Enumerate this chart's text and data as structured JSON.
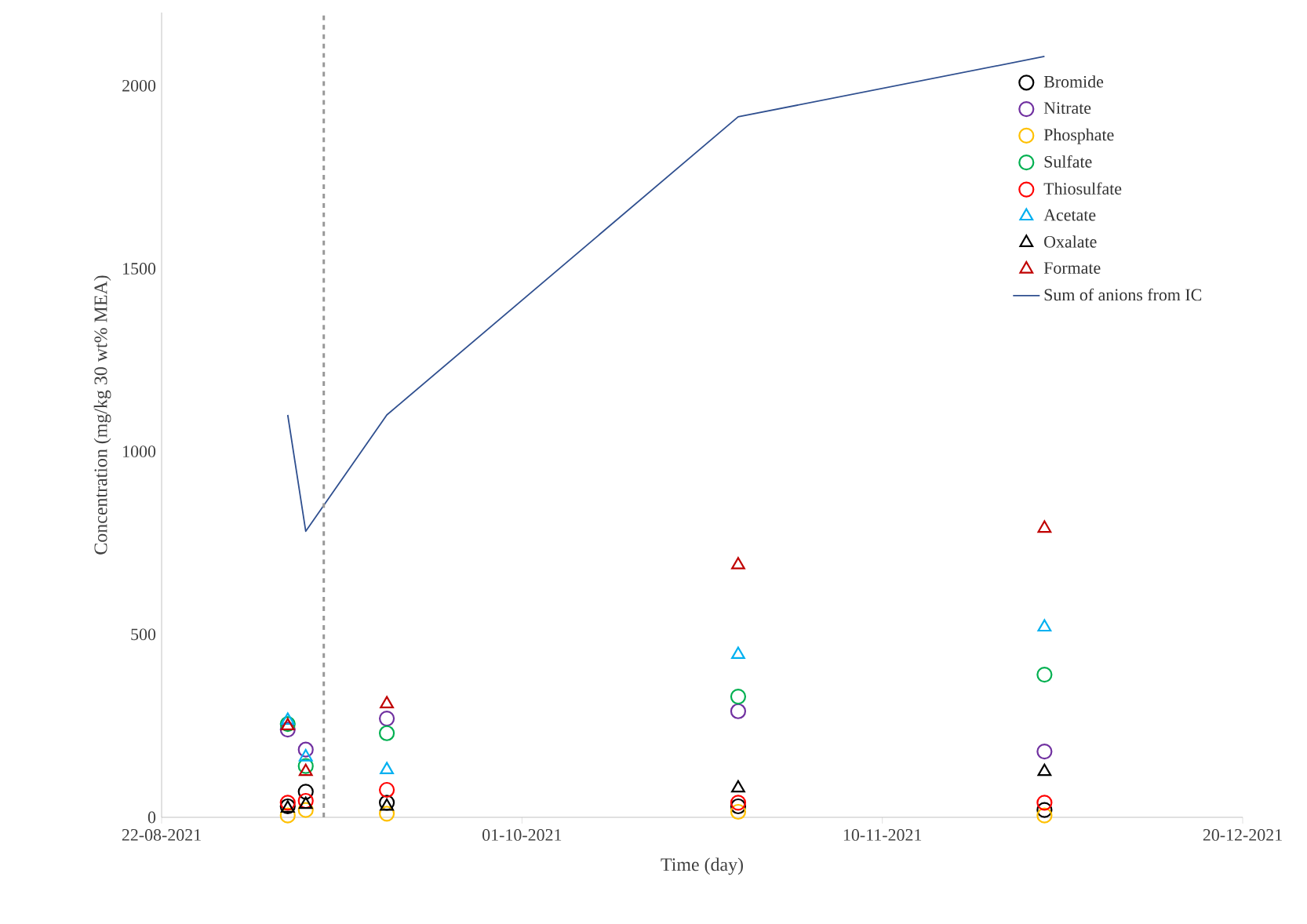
{
  "chart_data": {
    "type": "scatter",
    "xlabel": "Time (day)",
    "ylabel": "Concentration (mg/kg 30 wt% MEA)",
    "x": [
      "2021-09-05",
      "2021-09-07",
      "2021-09-16",
      "2021-10-25",
      "2021-11-28"
    ],
    "xlim": [
      "2021-08-22",
      "2021-12-20"
    ],
    "xticks": [
      {
        "value": "2021-08-22",
        "label": "22-08-2021"
      },
      {
        "value": "2021-10-01",
        "label": "01-10-2021"
      },
      {
        "value": "2021-11-10",
        "label": "10-11-2021"
      },
      {
        "value": "2021-12-20",
        "label": "20-12-2021"
      }
    ],
    "ylim": [
      0,
      2200
    ],
    "yticks": [
      0,
      500,
      1000,
      1500,
      2000
    ],
    "legend": "top right",
    "grid": false,
    "series": [
      {
        "name": "Bromide",
        "color": "#000000",
        "marker": "circle",
        "values": [
          30,
          70,
          40,
          30,
          20
        ]
      },
      {
        "name": "Nitrate",
        "color": "#7030a0",
        "marker": "circle",
        "values": [
          240,
          185,
          270,
          290,
          180
        ]
      },
      {
        "name": "Phosphate",
        "color": "#ffc000",
        "marker": "circle",
        "values": [
          5,
          20,
          10,
          15,
          5
        ]
      },
      {
        "name": "Sulfate",
        "color": "#00b050",
        "marker": "circle",
        "values": [
          255,
          140,
          230,
          330,
          390
        ]
      },
      {
        "name": "Thiosulfate",
        "color": "#ff0000",
        "marker": "circle",
        "values": [
          40,
          45,
          75,
          40,
          40
        ]
      },
      {
        "name": "Acetate",
        "color": "#00b0f0",
        "marker": "triangle",
        "values": [
          265,
          165,
          130,
          445,
          520
        ]
      },
      {
        "name": "Oxalate",
        "color": "#000000",
        "marker": "triangle",
        "values": [
          25,
          35,
          30,
          80,
          125
        ]
      },
      {
        "name": "Formate",
        "color": "#c00000",
        "marker": "triangle",
        "values": [
          250,
          125,
          310,
          690,
          790
        ]
      },
      {
        "name": "Sum of anions from IC",
        "type": "line",
        "color": "#2f4f8f",
        "marker": "none",
        "line_style": "solid",
        "values": [
          1100,
          782,
          1100,
          1915,
          2080
        ]
      }
    ],
    "ref_lines": [
      {
        "axis": "x",
        "value": "2021-09-09",
        "color": "#999999",
        "line_style": "dashed"
      }
    ]
  }
}
